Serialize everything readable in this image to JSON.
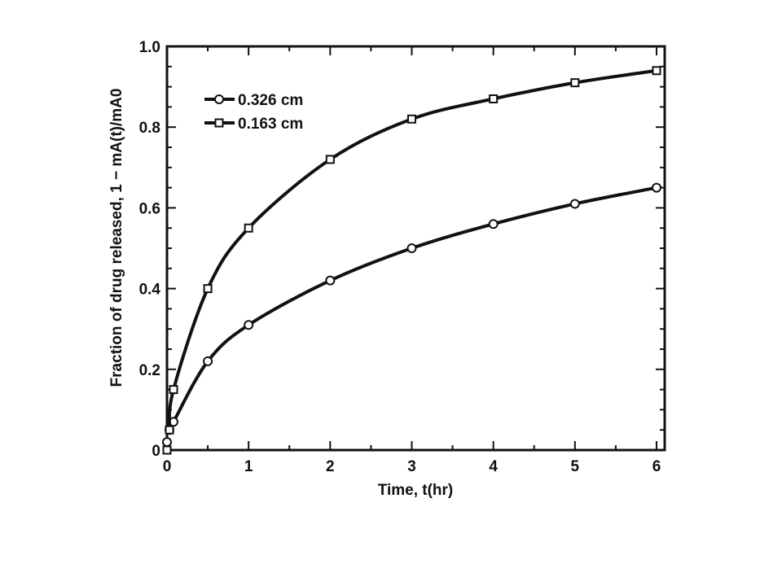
{
  "chart_data": {
    "type": "line",
    "title": "",
    "xlabel": "Time, t(hr)",
    "ylabel": "Fraction of drug released, 1 − mA(t)/mA0",
    "xlim": [
      0,
      6.1
    ],
    "ylim": [
      0,
      1.0
    ],
    "x_ticks": [
      0,
      1,
      2,
      3,
      4,
      5,
      6
    ],
    "y_ticks": [
      0,
      0.2,
      0.4,
      0.6,
      0.8,
      1.0
    ],
    "x_tick_labels": [
      "0",
      "1",
      "2",
      "3",
      "4",
      "5",
      "6"
    ],
    "y_tick_labels": [
      "0",
      "0.2",
      "0.4",
      "0.6",
      "0.8",
      "1.0"
    ],
    "grid": false,
    "legend_position": "top-left",
    "series": [
      {
        "name": "0.326 cm",
        "marker": "circle",
        "x": [
          0,
          0.03,
          0.08,
          0.5,
          1,
          2,
          3,
          4,
          5,
          6
        ],
        "y": [
          0.02,
          0.05,
          0.07,
          0.22,
          0.31,
          0.42,
          0.5,
          0.56,
          0.61,
          0.65
        ]
      },
      {
        "name": "0.163 cm",
        "marker": "square",
        "x": [
          0,
          0.03,
          0.08,
          0.5,
          1,
          2,
          3,
          4,
          5,
          6
        ],
        "y": [
          0.0,
          0.05,
          0.15,
          0.4,
          0.55,
          0.72,
          0.82,
          0.87,
          0.91,
          0.94
        ]
      }
    ]
  }
}
